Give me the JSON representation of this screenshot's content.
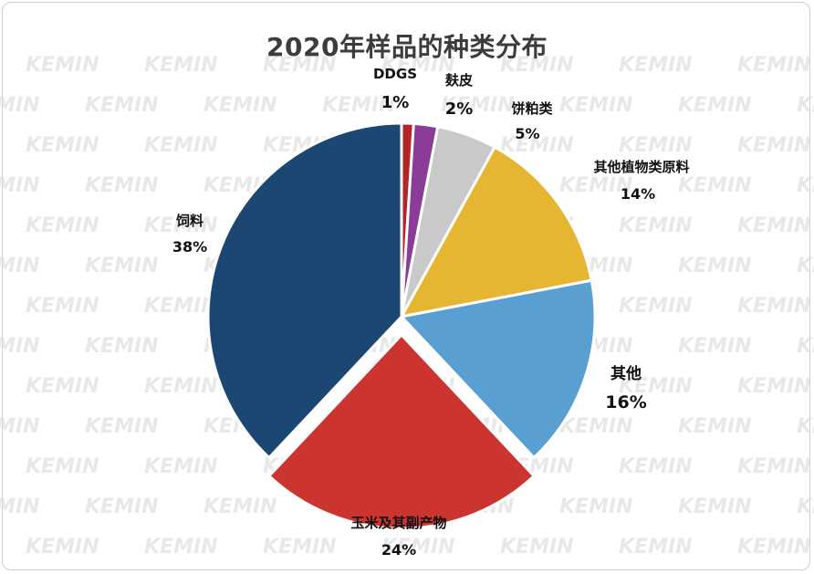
{
  "chart_data": {
    "type": "pie",
    "title": "2020年样品的种类分布",
    "categories": [
      "DDGS",
      "麸皮",
      "饼粕类",
      "其他植物类原料",
      "其他",
      "玉米及其副产物",
      "饲料"
    ],
    "values": [
      1,
      2,
      5,
      14,
      16,
      24,
      38
    ],
    "value_labels": [
      "1%",
      "2%",
      "5%",
      "14%",
      "16%",
      "24%",
      "38%"
    ],
    "colors": [
      "#b2262a",
      "#8b3b98",
      "#c9c9c9",
      "#e6b531",
      "#5a9fd2",
      "#cc3430",
      "#1c4772"
    ],
    "exploded": "玉米及其副产物",
    "legend": "none"
  },
  "watermark": {
    "text": "KEMIN",
    "color": "#dcdcdc"
  }
}
